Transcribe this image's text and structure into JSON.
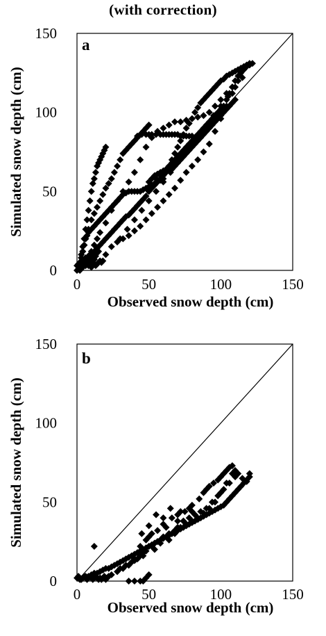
{
  "title": "(with correction)",
  "chart_data": [
    {
      "type": "scatter",
      "panel_label": "a",
      "xlabel": "Observed snow depth (cm)",
      "ylabel": "Simulated snow depth (cm)",
      "xlim": [
        0,
        150
      ],
      "ylim": [
        0,
        150
      ],
      "xticks": [
        "0",
        "50",
        "100",
        "150"
      ],
      "yticks": [
        "0",
        "50",
        "100",
        "150"
      ],
      "reference_line": "1:1",
      "marker": "diamond",
      "series": [
        {
          "x": [
            0,
            1,
            2,
            3,
            4,
            5,
            6,
            7,
            8,
            9,
            10,
            11,
            12,
            14,
            16,
            18,
            20,
            22,
            24,
            26,
            28,
            30,
            32,
            34,
            36,
            38,
            40,
            42,
            44,
            46,
            48,
            50,
            52,
            54,
            56,
            58,
            60,
            62,
            64,
            66,
            68,
            70,
            72,
            74,
            76,
            78,
            80,
            82,
            84,
            86,
            88,
            90,
            92,
            94,
            96,
            98,
            100,
            102,
            104,
            106,
            108,
            110,
            112,
            114,
            116,
            118,
            120,
            2,
            3,
            4,
            5,
            6,
            7,
            8,
            9,
            10,
            11,
            12,
            13,
            14,
            15,
            16,
            17,
            18,
            19,
            20,
            4,
            6,
            8,
            10,
            12,
            14,
            16,
            20,
            24,
            28,
            32,
            36,
            40,
            44,
            48,
            52,
            56,
            60,
            64,
            68,
            72,
            76,
            80,
            84,
            88,
            92,
            96,
            100,
            104,
            108,
            2,
            3,
            4,
            5,
            6,
            8,
            10,
            12,
            14,
            16,
            18,
            20,
            22,
            24,
            26,
            28,
            30,
            32,
            34,
            36,
            38,
            40,
            42,
            44,
            46,
            48,
            50,
            3,
            4,
            5,
            6,
            7,
            8,
            10,
            12,
            14,
            16,
            18,
            20,
            22,
            24,
            26,
            28,
            30,
            32,
            34,
            36,
            38,
            40,
            42,
            44,
            46,
            48,
            50,
            52,
            54,
            56,
            58,
            60,
            42,
            45,
            48,
            50,
            52,
            55,
            58,
            60,
            62,
            64,
            66,
            68,
            70,
            72,
            74,
            76,
            78,
            80,
            82,
            84,
            86,
            20,
            24,
            28,
            32,
            36,
            40,
            44,
            48,
            52,
            56,
            60,
            64,
            68,
            72,
            76,
            80,
            84,
            88,
            92,
            96,
            100,
            104,
            108,
            112,
            30,
            35,
            40,
            45,
            50,
            55,
            60,
            65,
            70,
            75,
            80,
            85,
            90,
            95,
            100,
            105,
            110,
            115,
            0,
            1,
            2,
            3,
            4,
            5,
            6,
            7,
            8,
            9,
            10,
            11,
            12,
            13,
            14,
            15,
            16,
            17,
            18,
            2,
            4,
            6,
            8,
            10,
            12,
            14,
            3,
            5,
            7,
            9,
            11,
            13,
            15,
            50,
            52,
            54,
            56,
            58,
            60,
            62,
            64,
            66,
            68,
            70,
            72,
            74,
            76,
            78,
            80,
            82,
            84,
            86,
            88,
            90,
            92,
            94,
            96,
            98,
            100,
            102,
            104,
            106,
            108,
            110,
            112,
            114,
            116,
            118,
            120,
            122,
            55,
            58,
            60,
            62,
            64,
            66,
            68,
            70,
            72,
            74,
            76,
            78,
            80,
            82,
            84,
            86,
            88,
            90,
            92,
            94,
            96,
            98,
            100,
            102,
            104,
            106,
            108,
            110
          ],
          "y": [
            3,
            4,
            5,
            6,
            6,
            7,
            8,
            8,
            9,
            10,
            10,
            11,
            12,
            14,
            16,
            18,
            20,
            22,
            24,
            26,
            28,
            30,
            32,
            34,
            35,
            37,
            39,
            41,
            43,
            45,
            47,
            50,
            52,
            54,
            56,
            58,
            60,
            63,
            66,
            70,
            74,
            78,
            82,
            86,
            90,
            93,
            96,
            100,
            103,
            106,
            108,
            110,
            112,
            114,
            116,
            118,
            120,
            121,
            123,
            124,
            125,
            126,
            127,
            128,
            129,
            130,
            131,
            5,
            10,
            15,
            20,
            26,
            32,
            38,
            44,
            50,
            55,
            58,
            62,
            66,
            68,
            70,
            72,
            74,
            76,
            78,
            2,
            5,
            8,
            12,
            16,
            20,
            24,
            30,
            38,
            44,
            50,
            56,
            62,
            70,
            78,
            84,
            88,
            90,
            92,
            94,
            94,
            95,
            96,
            97,
            98,
            100,
            104,
            108,
            112,
            116,
            4,
            8,
            12,
            16,
            20,
            26,
            32,
            36,
            40,
            44,
            48,
            52,
            55,
            58,
            62,
            66,
            70,
            74,
            76,
            78,
            80,
            82,
            84,
            86,
            88,
            90,
            92,
            8,
            12,
            16,
            20,
            22,
            24,
            26,
            28,
            30,
            32,
            34,
            36,
            38,
            40,
            42,
            44,
            46,
            48,
            49,
            50,
            50,
            50,
            50,
            50,
            51,
            52,
            53,
            54,
            55,
            56,
            57,
            58,
            85,
            86,
            86,
            86,
            86,
            86,
            86,
            86,
            86,
            86,
            86,
            86,
            86,
            85,
            85,
            85,
            85,
            85,
            84,
            84,
            84,
            10,
            15,
            18,
            20,
            22,
            25,
            28,
            32,
            36,
            40,
            44,
            48,
            52,
            57,
            62,
            66,
            70,
            75,
            80,
            88,
            96,
            104,
            112,
            120,
            20,
            26,
            32,
            38,
            44,
            50,
            56,
            62,
            68,
            74,
            80,
            86,
            92,
            98,
            104,
            110,
            116,
            122,
            0,
            1,
            2,
            3,
            4,
            5,
            6,
            4,
            3,
            5,
            2,
            6,
            7,
            3,
            4,
            5,
            6,
            5,
            6,
            0,
            2,
            3,
            5,
            7,
            9,
            11,
            6,
            4,
            8,
            3,
            5,
            9,
            12,
            56,
            58,
            60,
            61,
            62,
            63,
            64,
            66,
            68,
            70,
            72,
            74,
            76,
            78,
            80,
            82,
            84,
            86,
            88,
            90,
            92,
            94,
            96,
            98,
            100,
            102,
            104,
            108,
            112,
            116,
            120,
            123,
            125,
            127,
            129,
            130,
            131,
            58,
            60,
            61,
            62,
            63,
            64,
            66,
            68,
            70,
            72,
            74,
            76,
            78,
            80,
            82,
            84,
            86,
            88,
            90,
            92,
            94,
            96,
            98,
            100,
            102,
            104,
            106,
            108
          ]
        }
      ]
    },
    {
      "type": "scatter",
      "panel_label": "b",
      "xlabel": "Observed snow depth (cm)",
      "ylabel": "Simulated snow depth (cm)",
      "xlim": [
        0,
        150
      ],
      "ylim": [
        0,
        150
      ],
      "xticks": [
        "0",
        "50",
        "100",
        "150"
      ],
      "yticks": [
        "0",
        "50",
        "100",
        "150"
      ],
      "reference_line": "1:1",
      "marker": "diamond",
      "series": [
        {
          "x": [
            0,
            1,
            2,
            3,
            4,
            5,
            6,
            7,
            8,
            9,
            10,
            11,
            12,
            13,
            14,
            15,
            16,
            17,
            18,
            19,
            20,
            21,
            22,
            2,
            4,
            6,
            8,
            10,
            12,
            14,
            16,
            18,
            20,
            22,
            24,
            26,
            28,
            30,
            32,
            34,
            36,
            38,
            40,
            42,
            44,
            46,
            48,
            50,
            52,
            54,
            56,
            58,
            60,
            62,
            64,
            66,
            68,
            70,
            72,
            74,
            76,
            78,
            80,
            82,
            84,
            86,
            88,
            90,
            92,
            94,
            96,
            98,
            100,
            102,
            104,
            106,
            108,
            110,
            112,
            114,
            116,
            118,
            120,
            20,
            24,
            28,
            32,
            36,
            40,
            44,
            48,
            52,
            56,
            60,
            64,
            68,
            72,
            76,
            80,
            84,
            88,
            92,
            96,
            100,
            104,
            108,
            30,
            34,
            38,
            42,
            46,
            50,
            54,
            58,
            62,
            66,
            70,
            74,
            78,
            82,
            86,
            90,
            94,
            98,
            102,
            106,
            110,
            40,
            42,
            44,
            46,
            48,
            50,
            52,
            54,
            56,
            58,
            60,
            62,
            64,
            66,
            68,
            70,
            72,
            74,
            76,
            78,
            80,
            12,
            36,
            40,
            44,
            46,
            48,
            50,
            85,
            88,
            90,
            92,
            95,
            98,
            100,
            102,
            104,
            106,
            108,
            110,
            112,
            115,
            118,
            120,
            45,
            50,
            55,
            60,
            65,
            70,
            75,
            80
          ],
          "y": [
            2,
            3,
            2,
            1,
            2,
            3,
            2,
            1,
            2,
            3,
            2,
            1,
            2,
            3,
            2,
            1,
            2,
            1,
            2,
            3,
            1,
            2,
            3,
            1,
            2,
            3,
            3,
            4,
            5,
            5,
            6,
            7,
            8,
            8,
            9,
            10,
            11,
            12,
            13,
            14,
            15,
            16,
            17,
            18,
            19,
            20,
            21,
            22,
            23,
            24,
            25,
            26,
            27,
            28,
            29,
            30,
            31,
            32,
            33,
            34,
            35,
            36,
            37,
            38,
            39,
            40,
            41,
            42,
            43,
            44,
            45,
            46,
            47,
            48,
            50,
            52,
            54,
            56,
            58,
            60,
            62,
            64,
            66,
            2,
            4,
            6,
            8,
            10,
            13,
            16,
            19,
            22,
            25,
            28,
            30,
            32,
            34,
            36,
            38,
            40,
            43,
            46,
            50,
            56,
            62,
            68,
            8,
            10,
            12,
            14,
            18,
            22,
            24,
            26,
            28,
            30,
            34,
            38,
            40,
            42,
            44,
            46,
            50,
            54,
            58,
            62,
            66,
            14,
            18,
            22,
            16,
            26,
            28,
            30,
            20,
            32,
            24,
            36,
            34,
            26,
            40,
            30,
            42,
            44,
            38,
            36,
            46,
            44,
            22,
            0,
            0,
            0,
            0,
            2,
            4,
            52,
            56,
            58,
            60,
            62,
            64,
            66,
            68,
            70,
            72,
            73,
            70,
            68,
            65,
            63,
            68,
            30,
            35,
            42,
            40,
            46,
            38,
            44,
            48
          ]
        }
      ]
    }
  ]
}
